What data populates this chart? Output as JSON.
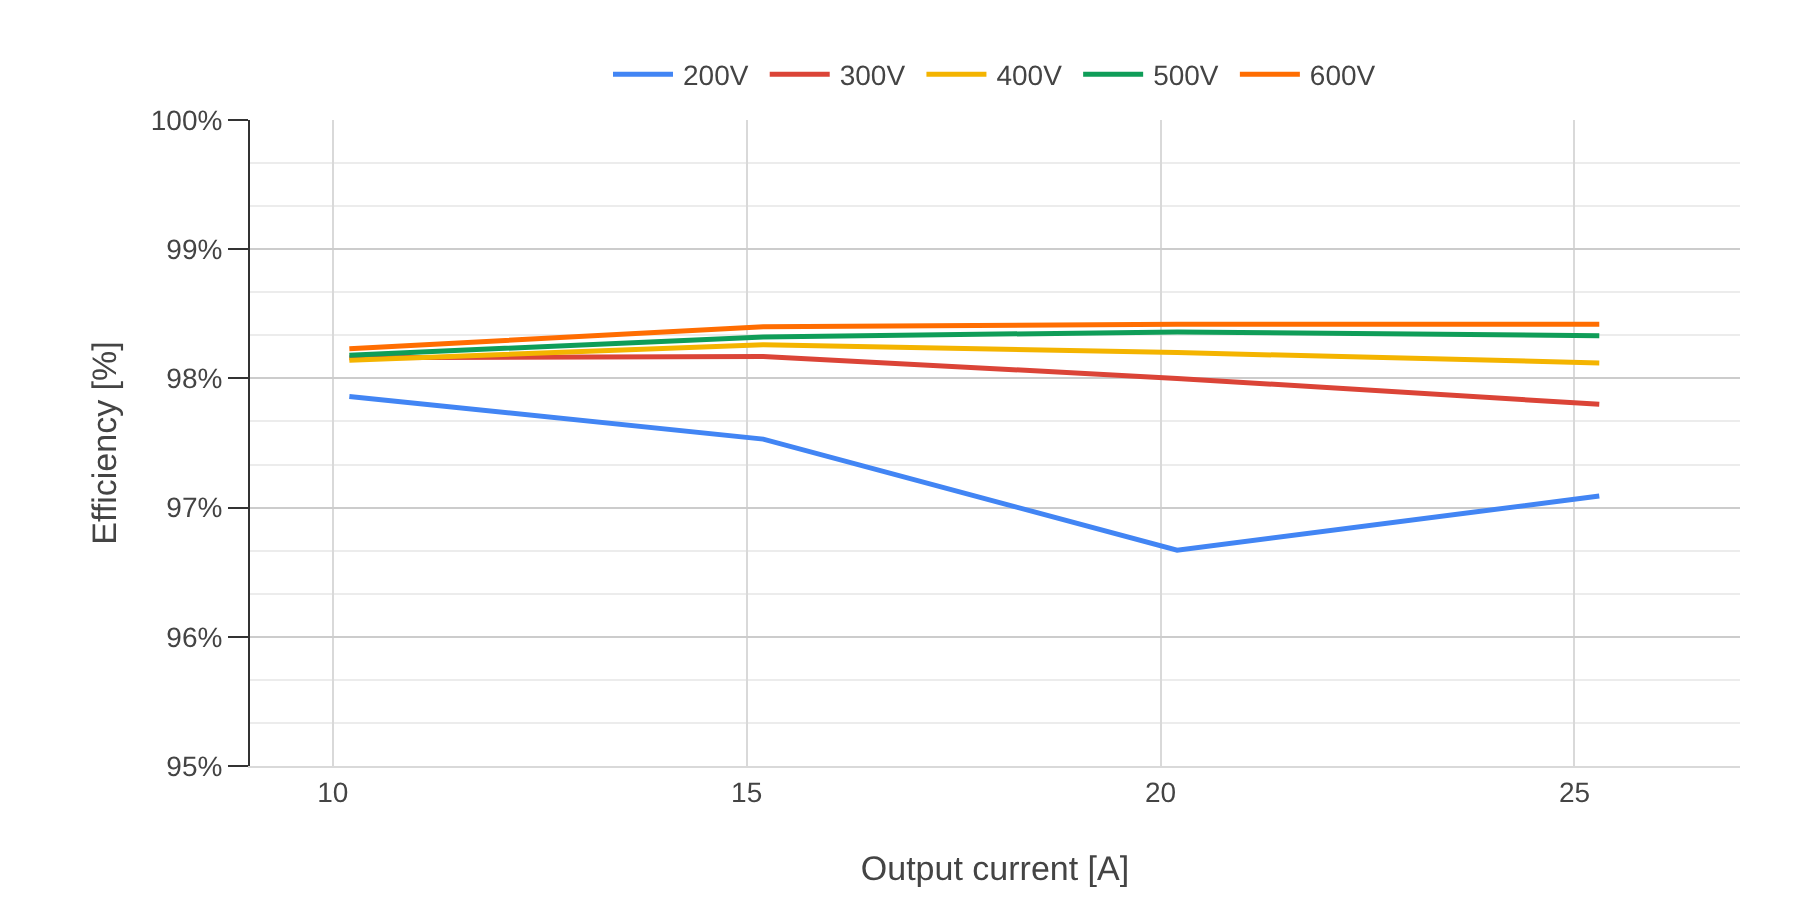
{
  "chart_data": {
    "type": "line",
    "xlabel": "Output current [A]",
    "ylabel": "Efficiency [%]",
    "x": [
      10.2,
      15.2,
      20.2,
      25.3
    ],
    "series": [
      {
        "name": "200V",
        "color": "#4285f4",
        "values": [
          97.86,
          97.53,
          96.67,
          97.09
        ]
      },
      {
        "name": "300V",
        "color": "#db4437",
        "values": [
          98.16,
          98.17,
          98.0,
          97.8
        ]
      },
      {
        "name": "400V",
        "color": "#f4b400",
        "values": [
          98.14,
          98.26,
          98.2,
          98.12
        ]
      },
      {
        "name": "500V",
        "color": "#0f9d58",
        "values": [
          98.18,
          98.32,
          98.36,
          98.33
        ]
      },
      {
        "name": "600V",
        "color": "#ff6d01",
        "values": [
          98.23,
          98.4,
          98.42,
          98.42
        ]
      }
    ],
    "xlim": [
      9,
      27
    ],
    "xticks": [
      10,
      15,
      20,
      25
    ],
    "ylim": [
      95,
      100
    ],
    "yticks": [
      {
        "value": 95,
        "label": "95%"
      },
      {
        "value": 96,
        "label": "96%"
      },
      {
        "value": 97,
        "label": "97%"
      },
      {
        "value": 98,
        "label": "98%"
      },
      {
        "value": 99,
        "label": "99%"
      },
      {
        "value": 100,
        "label": "100%"
      }
    ],
    "grid": true,
    "legend": "top",
    "marker": "none",
    "line_style": "solid"
  }
}
